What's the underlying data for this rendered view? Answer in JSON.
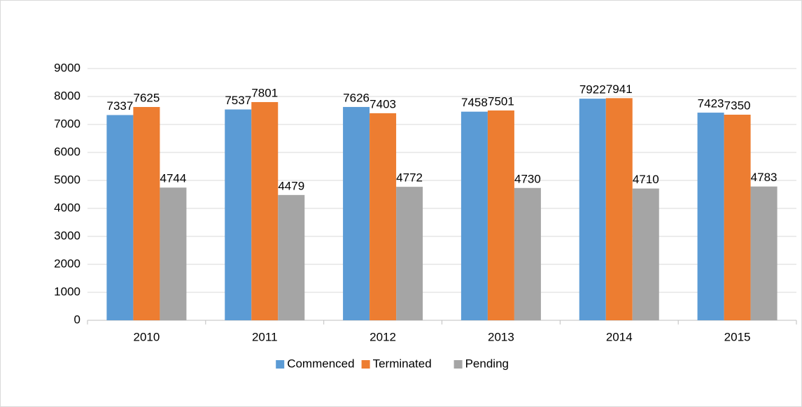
{
  "chart_data": {
    "type": "bar",
    "categories": [
      "2010",
      "2011",
      "2012",
      "2013",
      "2014",
      "2015"
    ],
    "series": [
      {
        "name": "Commenced",
        "color": "#5b9bd5",
        "values": [
          7337,
          7537,
          7626,
          7458,
          7922,
          7423
        ]
      },
      {
        "name": "Terminated",
        "color": "#ed7d31",
        "values": [
          7625,
          7801,
          7403,
          7501,
          7941,
          7350
        ]
      },
      {
        "name": "Pending",
        "color": "#a5a5a5",
        "values": [
          4744,
          4479,
          4772,
          4730,
          4710,
          4783
        ]
      }
    ],
    "ylim": [
      0,
      9000
    ],
    "yticks": [
      0,
      1000,
      2000,
      3000,
      4000,
      5000,
      6000,
      7000,
      8000,
      9000
    ],
    "grid": true,
    "legend": "bottom",
    "data_labels": true
  }
}
